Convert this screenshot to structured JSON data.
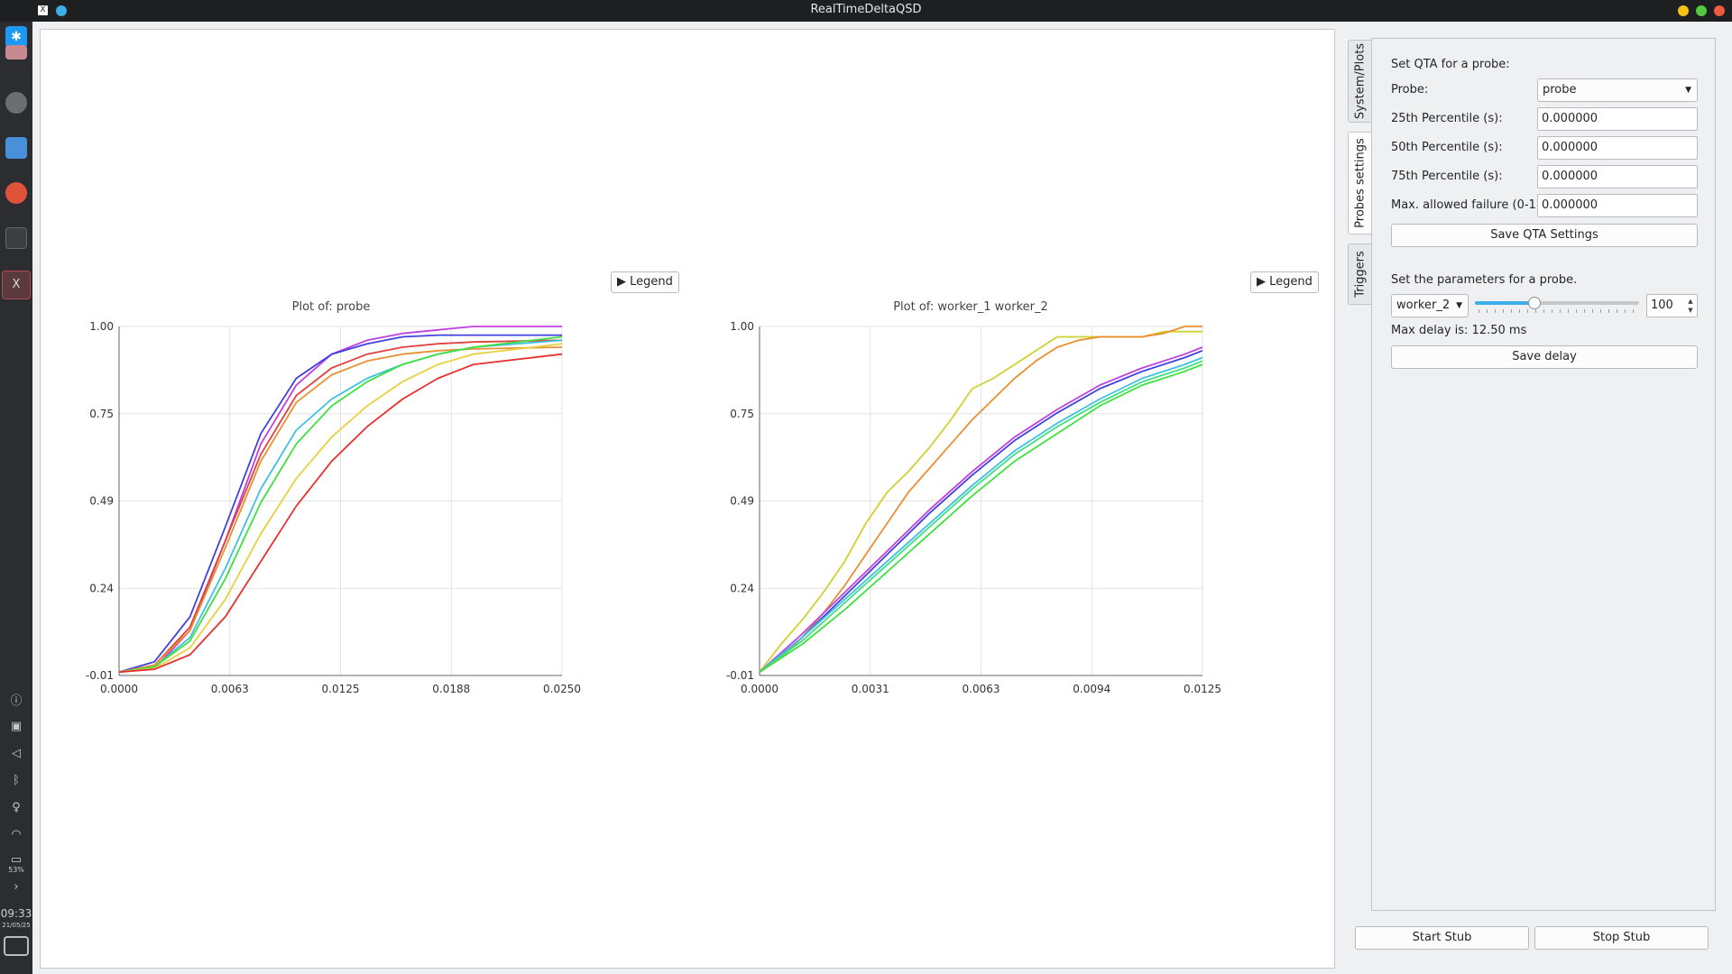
{
  "window": {
    "title": "RealTimeDeltaQSD"
  },
  "taskbar": {
    "time": "09:33",
    "date": "21/05/25",
    "battery": "53%"
  },
  "plots": [
    {
      "legend_label": "▶ Legend",
      "chart_data": {
        "type": "line",
        "title": "Plot of: probe",
        "xlabel": "",
        "ylabel": "",
        "xlim": [
          0,
          0.025
        ],
        "ylim": [
          -0.01,
          1.0
        ],
        "x_ticks": [
          "0.0000",
          "0.0063",
          "0.0125",
          "0.0188",
          "0.0250"
        ],
        "y_ticks": [
          "-0.01",
          "0.24",
          "0.49",
          "0.75",
          "1.00"
        ],
        "grid": true,
        "series": [
          {
            "color": "#c040e0",
            "x": [
              0,
              0.002,
              0.004,
              0.006,
              0.008,
              0.01,
              0.012,
              0.014,
              0.016,
              0.018,
              0.02,
              0.025
            ],
            "y": [
              0,
              0.01,
              0.12,
              0.38,
              0.66,
              0.83,
              0.92,
              0.96,
              0.98,
              0.99,
              1.0,
              1.0
            ]
          },
          {
            "color": "#4040e0",
            "x": [
              0,
              0.002,
              0.004,
              0.006,
              0.008,
              0.01,
              0.012,
              0.014,
              0.016,
              0.018,
              0.02,
              0.025
            ],
            "y": [
              0,
              0.03,
              0.16,
              0.42,
              0.69,
              0.85,
              0.92,
              0.95,
              0.97,
              0.975,
              0.975,
              0.975
            ]
          },
          {
            "color": "#e04040",
            "x": [
              0,
              0.002,
              0.004,
              0.006,
              0.008,
              0.01,
              0.012,
              0.014,
              0.016,
              0.018,
              0.02,
              0.025
            ],
            "y": [
              0,
              0.02,
              0.13,
              0.38,
              0.63,
              0.8,
              0.88,
              0.92,
              0.94,
              0.95,
              0.955,
              0.96
            ]
          },
          {
            "color": "#e89030",
            "x": [
              0,
              0.002,
              0.004,
              0.006,
              0.008,
              0.01,
              0.012,
              0.014,
              0.016,
              0.018,
              0.02,
              0.025
            ],
            "y": [
              0,
              0.02,
              0.12,
              0.36,
              0.61,
              0.78,
              0.86,
              0.9,
              0.92,
              0.93,
              0.935,
              0.94
            ]
          },
          {
            "color": "#40c0e0",
            "x": [
              0,
              0.002,
              0.004,
              0.006,
              0.008,
              0.01,
              0.012,
              0.014,
              0.016,
              0.018,
              0.02,
              0.025
            ],
            "y": [
              0,
              0.015,
              0.1,
              0.3,
              0.53,
              0.7,
              0.79,
              0.85,
              0.89,
              0.92,
              0.94,
              0.96
            ]
          },
          {
            "color": "#40e040",
            "x": [
              0,
              0.002,
              0.004,
              0.006,
              0.008,
              0.01,
              0.012,
              0.014,
              0.016,
              0.018,
              0.02,
              0.025
            ],
            "y": [
              0,
              0.015,
              0.09,
              0.27,
              0.49,
              0.66,
              0.77,
              0.84,
              0.89,
              0.92,
              0.94,
              0.97
            ]
          },
          {
            "color": "#e8d040",
            "x": [
              0,
              0.002,
              0.004,
              0.006,
              0.008,
              0.01,
              0.012,
              0.014,
              0.016,
              0.018,
              0.02,
              0.025
            ],
            "y": [
              0,
              0.01,
              0.07,
              0.21,
              0.4,
              0.56,
              0.68,
              0.77,
              0.84,
              0.89,
              0.92,
              0.95
            ]
          },
          {
            "color": "#e83030",
            "x": [
              0,
              0.002,
              0.004,
              0.006,
              0.008,
              0.01,
              0.012,
              0.014,
              0.016,
              0.018,
              0.02,
              0.025
            ],
            "y": [
              0,
              0.008,
              0.05,
              0.16,
              0.32,
              0.48,
              0.61,
              0.71,
              0.79,
              0.85,
              0.89,
              0.92
            ]
          }
        ]
      }
    },
    {
      "legend_label": "▶ Legend",
      "chart_data": {
        "type": "line",
        "title": "Plot of: worker_1 worker_2",
        "xlabel": "",
        "ylabel": "",
        "xlim": [
          0,
          0.0125
        ],
        "ylim": [
          -0.01,
          1.0
        ],
        "x_ticks": [
          "0.0000",
          "0.0031",
          "0.0063",
          "0.0094",
          "0.0125"
        ],
        "y_ticks": [
          "-0.01",
          "0.24",
          "0.49",
          "0.75",
          "1.00"
        ],
        "grid": true,
        "series": [
          {
            "color": "#d0d030",
            "x": [
              0,
              0.0006,
              0.0012,
              0.0018,
              0.0024,
              0.003,
              0.0036,
              0.0042,
              0.0048,
              0.0054,
              0.006,
              0.0066,
              0.0072,
              0.0078,
              0.0084,
              0.009,
              0.0096,
              0.0102,
              0.0108,
              0.0114,
              0.012,
              0.0125
            ],
            "y": [
              0,
              0.08,
              0.15,
              0.23,
              0.32,
              0.43,
              0.52,
              0.58,
              0.65,
              0.73,
              0.82,
              0.85,
              0.89,
              0.93,
              0.97,
              0.97,
              0.97,
              0.97,
              0.97,
              0.985,
              0.985,
              0.985
            ]
          },
          {
            "color": "#e89030",
            "x": [
              0,
              0.0006,
              0.0012,
              0.0018,
              0.0024,
              0.003,
              0.0036,
              0.0042,
              0.0048,
              0.0054,
              0.006,
              0.0066,
              0.0072,
              0.0078,
              0.0084,
              0.009,
              0.0096,
              0.0102,
              0.0108,
              0.0114,
              0.012,
              0.0125
            ],
            "y": [
              0,
              0.04,
              0.1,
              0.17,
              0.25,
              0.34,
              0.43,
              0.52,
              0.59,
              0.66,
              0.73,
              0.79,
              0.85,
              0.9,
              0.94,
              0.96,
              0.97,
              0.97,
              0.97,
              0.98,
              1.0,
              1.0
            ]
          },
          {
            "color": "#c040e0",
            "x": [
              0,
              0.0012,
              0.0024,
              0.0036,
              0.0048,
              0.006,
              0.0072,
              0.0084,
              0.0096,
              0.0108,
              0.012,
              0.0125
            ],
            "y": [
              0,
              0.11,
              0.23,
              0.35,
              0.47,
              0.58,
              0.68,
              0.76,
              0.83,
              0.88,
              0.92,
              0.94
            ]
          },
          {
            "color": "#4040e0",
            "x": [
              0,
              0.0012,
              0.0024,
              0.0036,
              0.0048,
              0.006,
              0.0072,
              0.0084,
              0.0096,
              0.0108,
              0.012,
              0.0125
            ],
            "y": [
              0,
              0.1,
              0.22,
              0.34,
              0.46,
              0.57,
              0.67,
              0.75,
              0.82,
              0.87,
              0.91,
              0.93
            ]
          },
          {
            "color": "#40c0e0",
            "x": [
              0,
              0.0012,
              0.0024,
              0.0036,
              0.0048,
              0.006,
              0.0072,
              0.0084,
              0.0096,
              0.0108,
              0.012,
              0.0125
            ],
            "y": [
              0,
              0.1,
              0.21,
              0.32,
              0.43,
              0.54,
              0.64,
              0.72,
              0.79,
              0.85,
              0.89,
              0.91
            ]
          },
          {
            "color": "#40e080",
            "x": [
              0,
              0.0012,
              0.0024,
              0.0036,
              0.0048,
              0.006,
              0.0072,
              0.0084,
              0.0096,
              0.0108,
              0.012,
              0.0125
            ],
            "y": [
              0,
              0.09,
              0.2,
              0.31,
              0.42,
              0.53,
              0.63,
              0.71,
              0.78,
              0.84,
              0.88,
              0.9
            ]
          },
          {
            "color": "#40e040",
            "x": [
              0,
              0.0012,
              0.0024,
              0.0036,
              0.0048,
              0.006,
              0.0072,
              0.0084,
              0.0096,
              0.0108,
              0.012,
              0.0125
            ],
            "y": [
              0,
              0.08,
              0.18,
              0.29,
              0.4,
              0.51,
              0.61,
              0.69,
              0.77,
              0.83,
              0.87,
              0.89
            ]
          }
        ]
      }
    }
  ],
  "tabs": [
    {
      "label": "System/Plots",
      "active": false
    },
    {
      "label": "Probes settings",
      "active": true
    },
    {
      "label": "Triggers",
      "active": false
    }
  ],
  "qta": {
    "heading": "Set QTA for a probe:",
    "probe_label": "Probe:",
    "probe_value": "probe",
    "p25_label": "25th Percentile (s):",
    "p25_value": "0.000000",
    "p50_label": "50th Percentile (s):",
    "p50_value": "0.000000",
    "p75_label": "75th Percentile (s):",
    "p75_value": "0.000000",
    "failure_label": "Max. allowed failure (0-1):",
    "failure_value": "0.000000",
    "save_label": "Save QTA Settings"
  },
  "params": {
    "heading": "Set the parameters for a probe.",
    "probe_select": "worker_2",
    "slider_level": 0.36,
    "spin_value": "100",
    "max_delay_text": "Max delay is: 12.50 ms",
    "save_delay_label": "Save delay"
  },
  "actions": {
    "start_label": "Start Stub",
    "stop_label": "Stop Stub"
  }
}
